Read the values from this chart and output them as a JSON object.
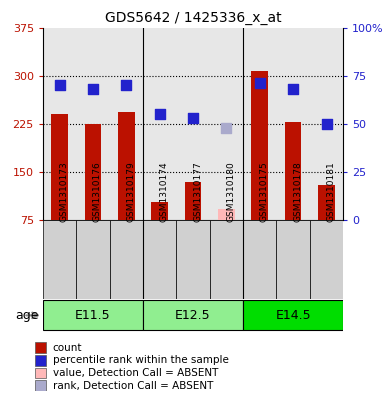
{
  "title": "GDS5642 / 1425336_x_at",
  "samples": [
    "GSM1310173",
    "GSM1310176",
    "GSM1310179",
    "GSM1310174",
    "GSM1310177",
    "GSM1310180",
    "GSM1310175",
    "GSM1310178",
    "GSM1310181"
  ],
  "counts": [
    240,
    225,
    243,
    103,
    135,
    null,
    307,
    228,
    130
  ],
  "counts_absent": [
    null,
    null,
    null,
    null,
    null,
    93,
    null,
    null,
    null
  ],
  "percentiles": [
    70,
    68,
    70,
    55,
    53,
    null,
    71,
    68,
    50
  ],
  "percentiles_absent": [
    null,
    null,
    null,
    null,
    null,
    48,
    null,
    null,
    null
  ],
  "groups": [
    {
      "label": "E11.5",
      "start": 0,
      "end": 3,
      "color": "#90ee90"
    },
    {
      "label": "E12.5",
      "start": 3,
      "end": 6,
      "color": "#90ee90"
    },
    {
      "label": "E14.5",
      "start": 6,
      "end": 9,
      "color": "#00dd00"
    }
  ],
  "ylim_left": [
    75,
    375
  ],
  "ylim_right": [
    0,
    100
  ],
  "yticks_left": [
    75,
    150,
    225,
    300,
    375
  ],
  "yticks_right": [
    0,
    25,
    50,
    75,
    100
  ],
  "ytick_labels_left": [
    "75",
    "150",
    "225",
    "300",
    "375"
  ],
  "ytick_labels_right": [
    "0",
    "25",
    "50",
    "75",
    "100%"
  ],
  "bar_color": "#bb1100",
  "bar_color_absent": "#ffb8b8",
  "square_color": "#2222cc",
  "square_color_absent": "#aaaacc",
  "cell_bg": "#d0d0d0",
  "age_label": "age",
  "group_separators": [
    3,
    6
  ],
  "legend": [
    {
      "color": "#bb1100",
      "label": "count"
    },
    {
      "color": "#2222cc",
      "label": "percentile rank within the sample"
    },
    {
      "color": "#ffb8b8",
      "label": "value, Detection Call = ABSENT"
    },
    {
      "color": "#aaaacc",
      "label": "rank, Detection Call = ABSENT"
    }
  ]
}
